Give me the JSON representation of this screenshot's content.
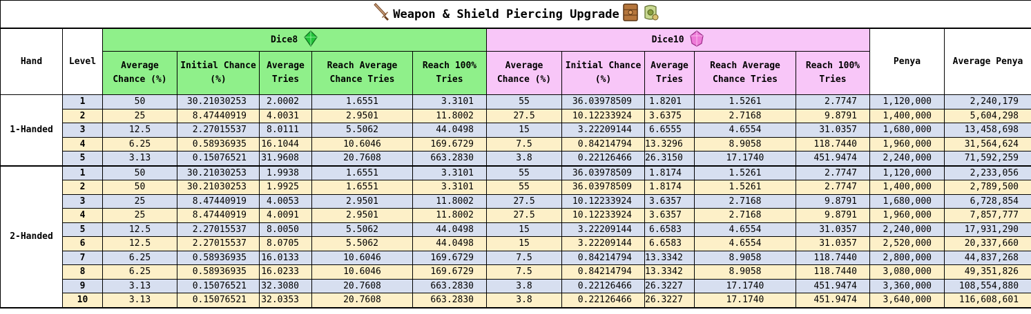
{
  "title": "Weapon & Shield Piercing Upgrade",
  "headers": {
    "hand": "Hand",
    "level": "Level",
    "dice8": "Dice8",
    "dice10": "Dice10",
    "penya": "Penya",
    "average_penya": "Average Penya",
    "sub": [
      "Average Chance (%)",
      "Initial Chance (%)",
      "Average Tries",
      "Reach Average Chance Tries",
      "Reach 100% Tries"
    ]
  },
  "groups": [
    {
      "hand": "1-Handed",
      "rows": [
        {
          "level": "1",
          "d8": [
            "50",
            "30.21030253",
            "2.0002",
            "1.6551",
            "3.3101"
          ],
          "d10": [
            "55",
            "36.03978509",
            "1.8201",
            "1.5261",
            "2.7747"
          ],
          "penya": "1,120,000",
          "avg_penya": "2,240,179"
        },
        {
          "level": "2",
          "d8": [
            "25",
            "8.47440919",
            "4.0031",
            "2.9501",
            "11.8002"
          ],
          "d10": [
            "27.5",
            "10.12233924",
            "3.6375",
            "2.7168",
            "9.8791"
          ],
          "penya": "1,400,000",
          "avg_penya": "5,604,298"
        },
        {
          "level": "3",
          "d8": [
            "12.5",
            "2.27015537",
            "8.0111",
            "5.5062",
            "44.0498"
          ],
          "d10": [
            "15",
            "3.22209144",
            "6.6555",
            "4.6554",
            "31.0357"
          ],
          "penya": "1,680,000",
          "avg_penya": "13,458,698"
        },
        {
          "level": "4",
          "d8": [
            "6.25",
            "0.58936935",
            "16.1044",
            "10.6046",
            "169.6729"
          ],
          "d10": [
            "7.5",
            "0.84214794",
            "13.3296",
            "8.9058",
            "118.7440"
          ],
          "penya": "1,960,000",
          "avg_penya": "31,564,624"
        },
        {
          "level": "5",
          "d8": [
            "3.13",
            "0.15076521",
            "31.9608",
            "20.7608",
            "663.2830"
          ],
          "d10": [
            "3.8",
            "0.22126466",
            "26.3150",
            "17.1740",
            "451.9474"
          ],
          "penya": "2,240,000",
          "avg_penya": "71,592,259"
        }
      ]
    },
    {
      "hand": "2-Handed",
      "rows": [
        {
          "level": "1",
          "d8": [
            "50",
            "30.21030253",
            "1.9938",
            "1.6551",
            "3.3101"
          ],
          "d10": [
            "55",
            "36.03978509",
            "1.8174",
            "1.5261",
            "2.7747"
          ],
          "penya": "1,120,000",
          "avg_penya": "2,233,056"
        },
        {
          "level": "2",
          "d8": [
            "50",
            "30.21030253",
            "1.9925",
            "1.6551",
            "3.3101"
          ],
          "d10": [
            "55",
            "36.03978509",
            "1.8174",
            "1.5261",
            "2.7747"
          ],
          "penya": "1,400,000",
          "avg_penya": "2,789,500"
        },
        {
          "level": "3",
          "d8": [
            "25",
            "8.47440919",
            "4.0053",
            "2.9501",
            "11.8002"
          ],
          "d10": [
            "27.5",
            "10.12233924",
            "3.6357",
            "2.7168",
            "9.8791"
          ],
          "penya": "1,680,000",
          "avg_penya": "6,728,854"
        },
        {
          "level": "4",
          "d8": [
            "25",
            "8.47440919",
            "4.0091",
            "2.9501",
            "11.8002"
          ],
          "d10": [
            "27.5",
            "10.12233924",
            "3.6357",
            "2.7168",
            "9.8791"
          ],
          "penya": "1,960,000",
          "avg_penya": "7,857,777"
        },
        {
          "level": "5",
          "d8": [
            "12.5",
            "2.27015537",
            "8.0050",
            "5.5062",
            "44.0498"
          ],
          "d10": [
            "15",
            "3.22209144",
            "6.6583",
            "4.6554",
            "31.0357"
          ],
          "penya": "2,240,000",
          "avg_penya": "17,931,290"
        },
        {
          "level": "6",
          "d8": [
            "12.5",
            "2.27015537",
            "8.0705",
            "5.5062",
            "44.0498"
          ],
          "d10": [
            "15",
            "3.22209144",
            "6.6583",
            "4.6554",
            "31.0357"
          ],
          "penya": "2,520,000",
          "avg_penya": "20,337,660"
        },
        {
          "level": "7",
          "d8": [
            "6.25",
            "0.58936935",
            "16.0133",
            "10.6046",
            "169.6729"
          ],
          "d10": [
            "7.5",
            "0.84214794",
            "13.3342",
            "8.9058",
            "118.7440"
          ],
          "penya": "2,800,000",
          "avg_penya": "44,837,268"
        },
        {
          "level": "8",
          "d8": [
            "6.25",
            "0.58936935",
            "16.0233",
            "10.6046",
            "169.6729"
          ],
          "d10": [
            "7.5",
            "0.84214794",
            "13.3342",
            "8.9058",
            "118.7440"
          ],
          "penya": "3,080,000",
          "avg_penya": "49,351,826"
        },
        {
          "level": "9",
          "d8": [
            "3.13",
            "0.15076521",
            "32.3080",
            "20.7608",
            "663.2830"
          ],
          "d10": [
            "3.8",
            "0.22126466",
            "26.3227",
            "17.1740",
            "451.9474"
          ],
          "penya": "3,360,000",
          "avg_penya": "108,554,880"
        },
        {
          "level": "10",
          "d8": [
            "3.13",
            "0.15076521",
            "32.0353",
            "20.7608",
            "663.2830"
          ],
          "d10": [
            "3.8",
            "0.22126466",
            "26.3227",
            "17.1740",
            "451.9474"
          ],
          "penya": "3,640,000",
          "avg_penya": "116,608,601"
        }
      ]
    }
  ],
  "colors": {
    "dice8": "#8ff08a",
    "dice10": "#f8c6f8",
    "row_blue": "#d7dff0",
    "row_yellow": "#fdf0c8"
  },
  "icons": [
    "sword-icon",
    "wooden-shield-icon",
    "scroll-icon",
    "green-gem-icon",
    "pink-gem-icon"
  ]
}
